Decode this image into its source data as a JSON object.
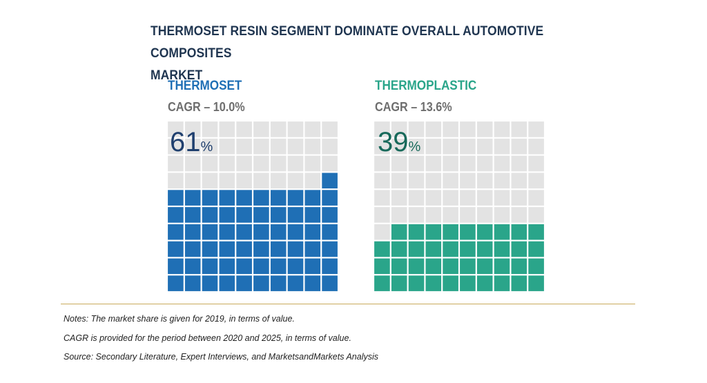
{
  "title_line1": "THERMOSET RESIN SEGMENT DOMINATE OVERALL AUTOMOTIVE COMPOSITES",
  "title_line2": "MARKET",
  "chart_data": {
    "type": "waffle",
    "grid": [
      10,
      10
    ],
    "empty_color": "#e3e3e3",
    "segments": [
      {
        "name": "THERMOSET",
        "cagr": "CAGR – 10.0%",
        "value": 61,
        "value_text": "61",
        "unit": "%",
        "color": "#1f6fb5",
        "text_color": "#1f3f6e"
      },
      {
        "name": "THERMOPLASTIC",
        "cagr": "CAGR – 13.6%",
        "value": 39,
        "value_text": "39",
        "unit": "%",
        "color": "#2aa58a",
        "text_color": "#17695a"
      }
    ]
  },
  "notes": [
    "Notes: The market share is given for 2019, in terms of value.",
    "CAGR is provided for the period between 2020 and 2025, in terms of value.",
    "Source: Secondary Literature, Expert Interviews, and MarketsandMarkets Analysis"
  ]
}
